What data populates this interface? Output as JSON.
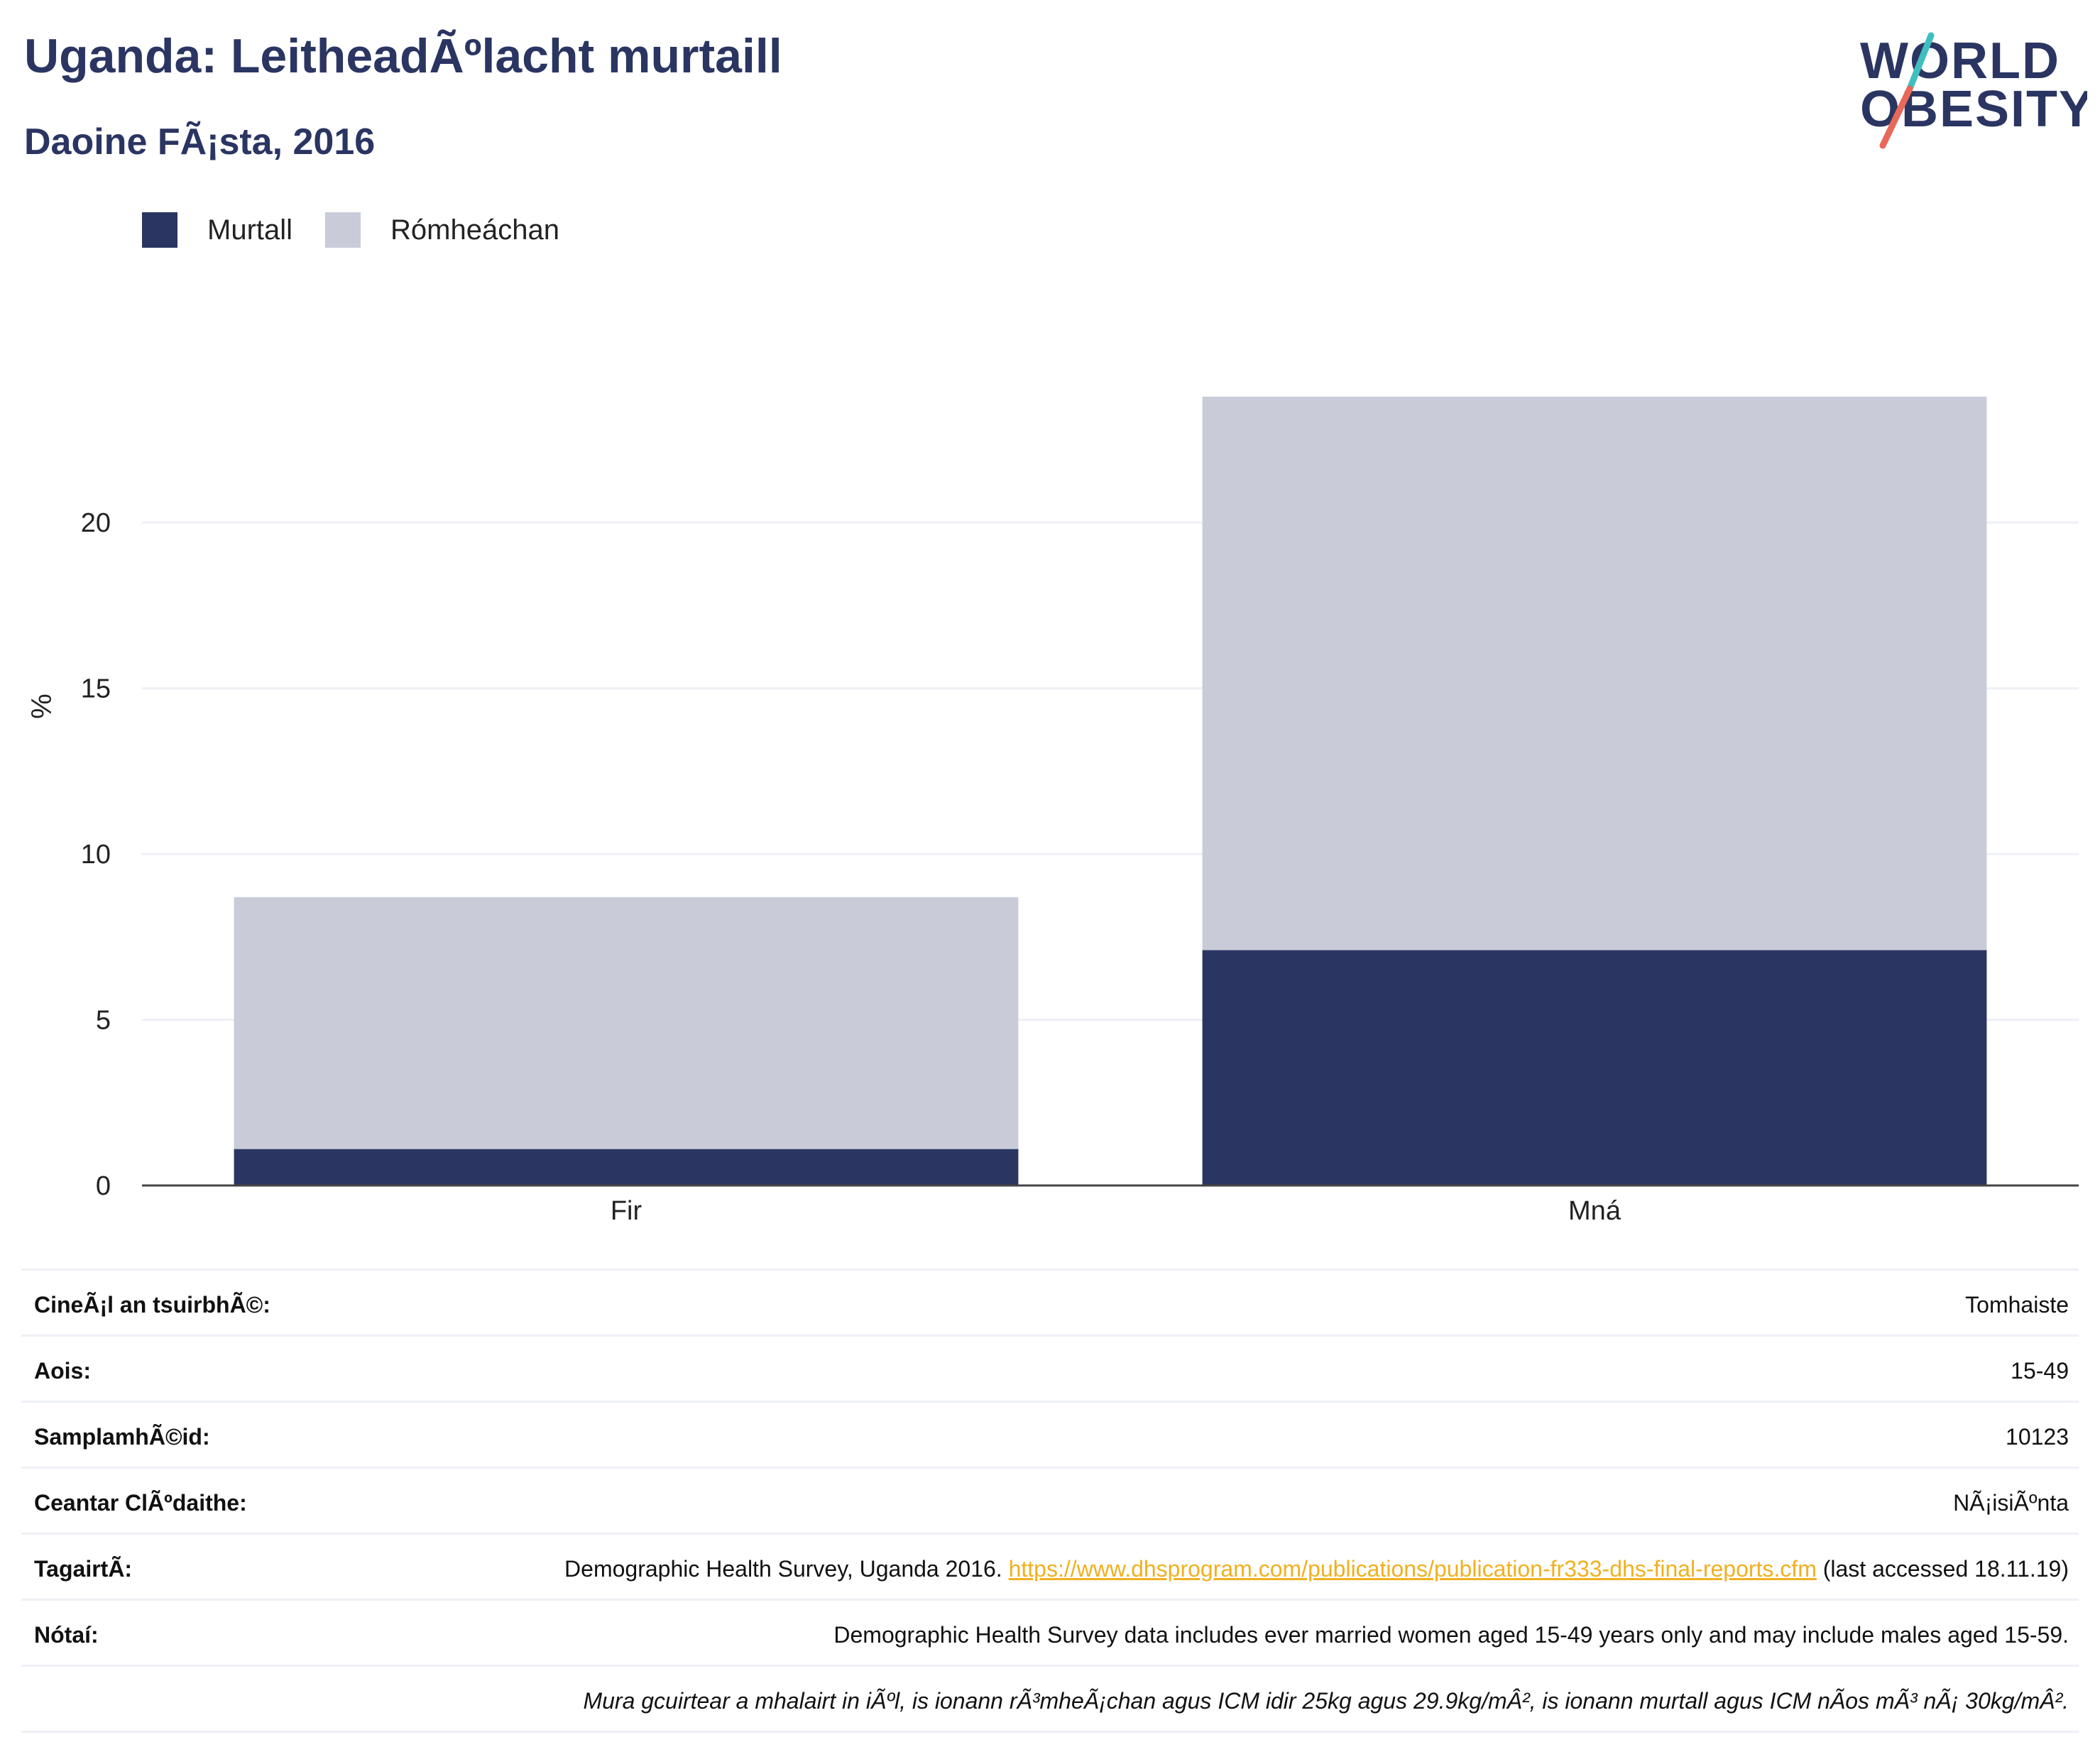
{
  "header": {
    "title": "Uganda: LeitheadÃºlacht murtaill",
    "subtitle": "Daoine FÃ¡sta, 2016",
    "logo_line1": "WORLD",
    "logo_line2": "OBESITY"
  },
  "colors": {
    "obese": "#2a3562",
    "overweight": "#c9ccd8",
    "title": "#2a3562",
    "link": "#f0b020",
    "gridline": "#eef0f6"
  },
  "legend": [
    {
      "label": "Murtall",
      "color": "#2a3562"
    },
    {
      "label": "Rómheáchan",
      "color": "#c9ccd8"
    }
  ],
  "chart_data": {
    "type": "bar",
    "stacked": true,
    "categories": [
      "Fir",
      "Mná"
    ],
    "series": [
      {
        "name": "Murtall",
        "values": [
          1.1,
          7.1
        ]
      },
      {
        "name": "Rómheáchan",
        "values": [
          7.6,
          16.7
        ]
      }
    ],
    "ylabel": "%",
    "yticks": [
      0,
      5,
      10,
      15,
      20
    ],
    "ylim": [
      0,
      27.2
    ],
    "grid": true,
    "legend_position": "top-left"
  },
  "meta": {
    "rows": [
      {
        "key": "CineÃ¡l an tsuirbhÃ©:",
        "value": "Tomhaiste"
      },
      {
        "key": "Aois:",
        "value": "15-49"
      },
      {
        "key": "SamplamhÃ©id:",
        "value": "10123"
      },
      {
        "key": "Ceantar ClÃºdaithe:",
        "value": "NÃ¡isiÃºnta"
      }
    ],
    "reference": {
      "key": "TagairtÃ:",
      "text_before": "Demographic Health Survey, Uganda 2016. ",
      "link": "https://www.dhsprogram.com/publications/publication-fr333-dhs-final-reports.cfm",
      "text_after": " (last accessed 18.11.19)"
    },
    "notes": {
      "key": "Nótaí:",
      "value": "Demographic Health Survey data includes ever married women aged 15-49 years only and may include males aged 15-59."
    },
    "footnote": "Mura gcuirtear a mhalairt in iÃºl, is ionann rÃ³mheÃ¡chan agus ICM idir 25kg agus 29.9kg/mÂ², is ionann murtall agus ICM nÃ­os mÃ³ nÃ¡ 30kg/mÂ²."
  }
}
